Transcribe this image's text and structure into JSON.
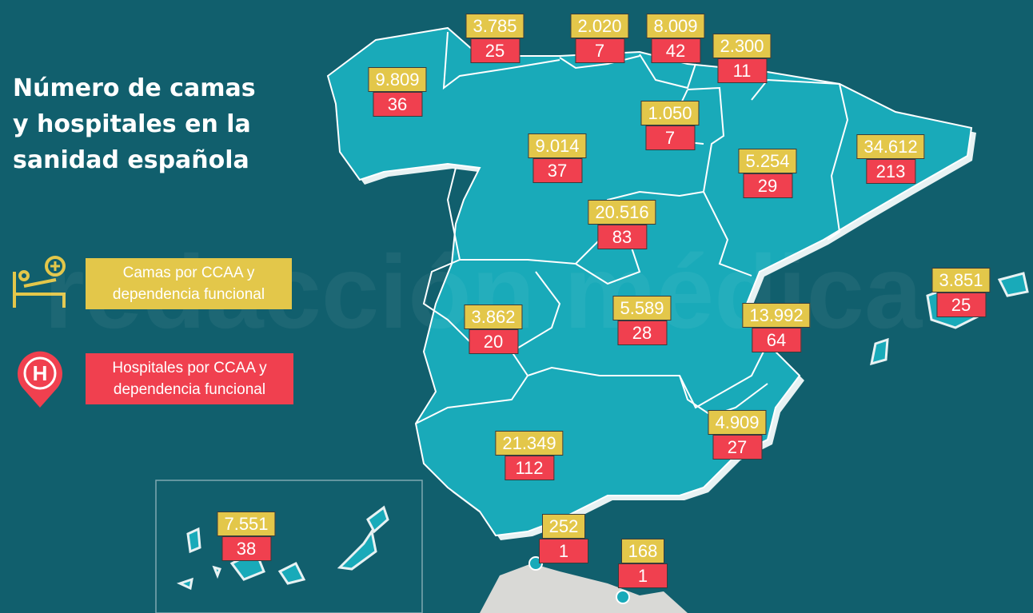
{
  "header": {
    "title": [
      "Número de camas",
      "y hospitales en la",
      "sanidad española"
    ]
  },
  "watermark": "redacción médica",
  "legend": [
    {
      "label": [
        "Camas por CCAA y",
        "dependencia funcional"
      ]
    },
    {
      "label": [
        "Hospitales por CCAA y",
        "dependencia funcional"
      ]
    }
  ],
  "regions": [
    {
      "beds": "9.809",
      "hospitals": "36"
    },
    {
      "beds": "3.785",
      "hospitals": "25"
    },
    {
      "beds": "2.020",
      "hospitals": "7"
    },
    {
      "beds": "8.009",
      "hospitals": "42"
    },
    {
      "beds": "2.300",
      "hospitals": "11"
    },
    {
      "beds": "1.050",
      "hospitals": "7"
    },
    {
      "beds": "9.014",
      "hospitals": "37"
    },
    {
      "beds": "5.254",
      "hospitals": "29"
    },
    {
      "beds": "34.612",
      "hospitals": "213"
    },
    {
      "beds": "20.516",
      "hospitals": "83"
    },
    {
      "beds": "3.862",
      "hospitals": "20"
    },
    {
      "beds": "5.589",
      "hospitals": "28"
    },
    {
      "beds": "13.992",
      "hospitals": "64"
    },
    {
      "beds": "3.851",
      "hospitals": "25"
    },
    {
      "beds": "4.909",
      "hospitals": "27"
    },
    {
      "beds": "21.349",
      "hospitals": "112"
    },
    {
      "beds": "7.551",
      "hospitals": "38"
    },
    {
      "beds": "252",
      "hospitals": "1"
    },
    {
      "beds": "168",
      "hospitals": "1"
    }
  ]
}
